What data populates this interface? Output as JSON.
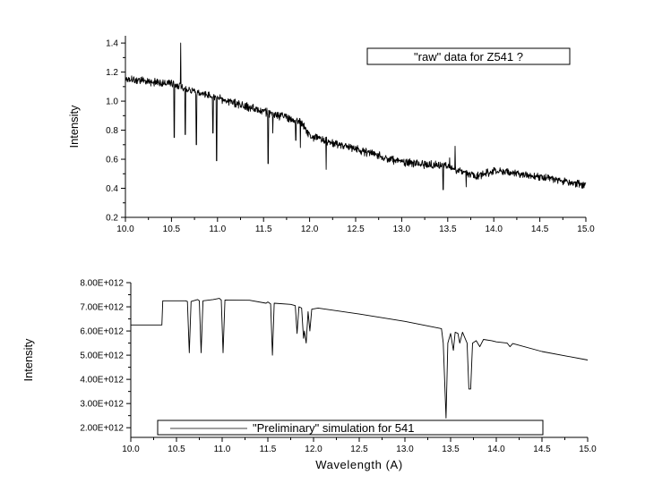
{
  "chart_data": [
    {
      "type": "line",
      "title": "",
      "xlabel": "",
      "ylabel": "Intensity",
      "xlim": [
        10.0,
        15.0
      ],
      "ylim": [
        0.2,
        1.45
      ],
      "x_ticks": [
        "10.0",
        "10.5",
        "11.0",
        "11.5",
        "12.0",
        "12.5",
        "13.0",
        "13.5",
        "14.0",
        "14.5",
        "15.0"
      ],
      "y_ticks": [
        "0.2",
        "0.4",
        "0.6",
        "0.8",
        "1.0",
        "1.2",
        "1.4"
      ],
      "grid": false,
      "legend": {
        "text": "\"raw\" data for Z541 ?",
        "placement": "top-right"
      },
      "series": [
        {
          "color": "#000000",
          "noise": 0.022,
          "baseline": [
            [
              10.0,
              1.15
            ],
            [
              10.5,
              1.12
            ],
            [
              11.0,
              1.02
            ],
            [
              11.5,
              0.93
            ],
            [
              11.9,
              0.86
            ],
            [
              12.0,
              0.76
            ],
            [
              12.5,
              0.67
            ],
            [
              13.0,
              0.58
            ],
            [
              13.5,
              0.55
            ],
            [
              13.8,
              0.48
            ],
            [
              14.0,
              0.52
            ],
            [
              14.5,
              0.48
            ],
            [
              15.0,
              0.42
            ]
          ],
          "features": [
            {
              "x": 10.53,
              "y": 0.75
            },
            {
              "x": 10.6,
              "y": 1.4
            },
            {
              "x": 10.65,
              "y": 0.77
            },
            {
              "x": 10.77,
              "y": 0.7
            },
            {
              "x": 10.95,
              "y": 0.78
            },
            {
              "x": 10.99,
              "y": 0.59
            },
            {
              "x": 11.55,
              "y": 0.57
            },
            {
              "x": 11.6,
              "y": 0.78
            },
            {
              "x": 11.85,
              "y": 0.73
            },
            {
              "x": 11.9,
              "y": 0.68
            },
            {
              "x": 12.18,
              "y": 0.53
            },
            {
              "x": 13.45,
              "y": 0.39
            },
            {
              "x": 13.52,
              "y": 0.61
            },
            {
              "x": 13.58,
              "y": 0.69
            },
            {
              "x": 13.7,
              "y": 0.41
            }
          ]
        }
      ]
    },
    {
      "type": "line",
      "title": "",
      "xlabel": "Wavelength (A)",
      "ylabel": "Intensity",
      "xlim": [
        10.0,
        15.0
      ],
      "ylim": [
        1600000000000.0,
        8000000000000.0
      ],
      "x_ticks": [
        "10.0",
        "10.5",
        "11.0",
        "11.5",
        "12.0",
        "12.5",
        "13.0",
        "13.5",
        "14.0",
        "14.5",
        "15.0"
      ],
      "y_ticks": [
        "2.00E+012",
        "3.00E+012",
        "4.00E+012",
        "5.00E+012",
        "6.00E+012",
        "7.00E+012",
        "8.00E+012"
      ],
      "grid": false,
      "legend": {
        "text": "\"Preliminary\" simulation for 541",
        "placement": "bottom-left"
      },
      "series": [
        {
          "color": "#000000",
          "points": [
            [
              10.0,
              6250000000000.0
            ],
            [
              10.34,
              6250000000000.0
            ],
            [
              10.35,
              7250000000000.0
            ],
            [
              10.6,
              7250000000000.0
            ],
            [
              10.62,
              7220000000000.0
            ],
            [
              10.64,
              5100000000000.0
            ],
            [
              10.66,
              7220000000000.0
            ],
            [
              10.73,
              7300000000000.0
            ],
            [
              10.75,
              7250000000000.0
            ],
            [
              10.77,
              5100000000000.0
            ],
            [
              10.79,
              7250000000000.0
            ],
            [
              10.9,
              7300000000000.0
            ],
            [
              10.97,
              7350000000000.0
            ],
            [
              10.99,
              7280000000000.0
            ],
            [
              11.01,
              5100000000000.0
            ],
            [
              11.03,
              7280000000000.0
            ],
            [
              11.3,
              7270000000000.0
            ],
            [
              11.48,
              7150000000000.0
            ],
            [
              11.5,
              7200000000000.0
            ],
            [
              11.53,
              7120000000000.0
            ],
            [
              11.55,
              5000000000000.0
            ],
            [
              11.57,
              7150000000000.0
            ],
            [
              11.75,
              7100000000000.0
            ],
            [
              11.8,
              7050000000000.0
            ],
            [
              11.82,
              5900000000000.0
            ],
            [
              11.84,
              7000000000000.0
            ],
            [
              11.87,
              6950000000000.0
            ],
            [
              11.89,
              5700000000000.0
            ],
            [
              11.9,
              6000000000000.0
            ],
            [
              11.92,
              5500000000000.0
            ],
            [
              11.94,
              6800000000000.0
            ],
            [
              11.96,
              6000000000000.0
            ],
            [
              11.98,
              6900000000000.0
            ],
            [
              12.05,
              6950000000000.0
            ],
            [
              12.5,
              6700000000000.0
            ],
            [
              13.0,
              6400000000000.0
            ],
            [
              13.4,
              6100000000000.0
            ],
            [
              13.42,
              5500000000000.0
            ],
            [
              13.45,
              2400000000000.0
            ],
            [
              13.47,
              5500000000000.0
            ],
            [
              13.5,
              5900000000000.0
            ],
            [
              13.53,
              5200000000000.0
            ],
            [
              13.55,
              5950000000000.0
            ],
            [
              13.58,
              5900000000000.0
            ],
            [
              13.6,
              5500000000000.0
            ],
            [
              13.63,
              5950000000000.0
            ],
            [
              13.68,
              5500000000000.0
            ],
            [
              13.7,
              3600000000000.0
            ],
            [
              13.72,
              3600000000000.0
            ],
            [
              13.74,
              5500000000000.0
            ],
            [
              13.78,
              5600000000000.0
            ],
            [
              13.82,
              5350000000000.0
            ],
            [
              13.86,
              5650000000000.0
            ],
            [
              13.95,
              5600000000000.0
            ],
            [
              14.0,
              5550000000000.0
            ],
            [
              14.12,
              5500000000000.0
            ],
            [
              14.15,
              5350000000000.0
            ],
            [
              14.18,
              5480000000000.0
            ],
            [
              14.5,
              5150000000000.0
            ],
            [
              15.0,
              4800000000000.0
            ]
          ]
        }
      ]
    }
  ]
}
